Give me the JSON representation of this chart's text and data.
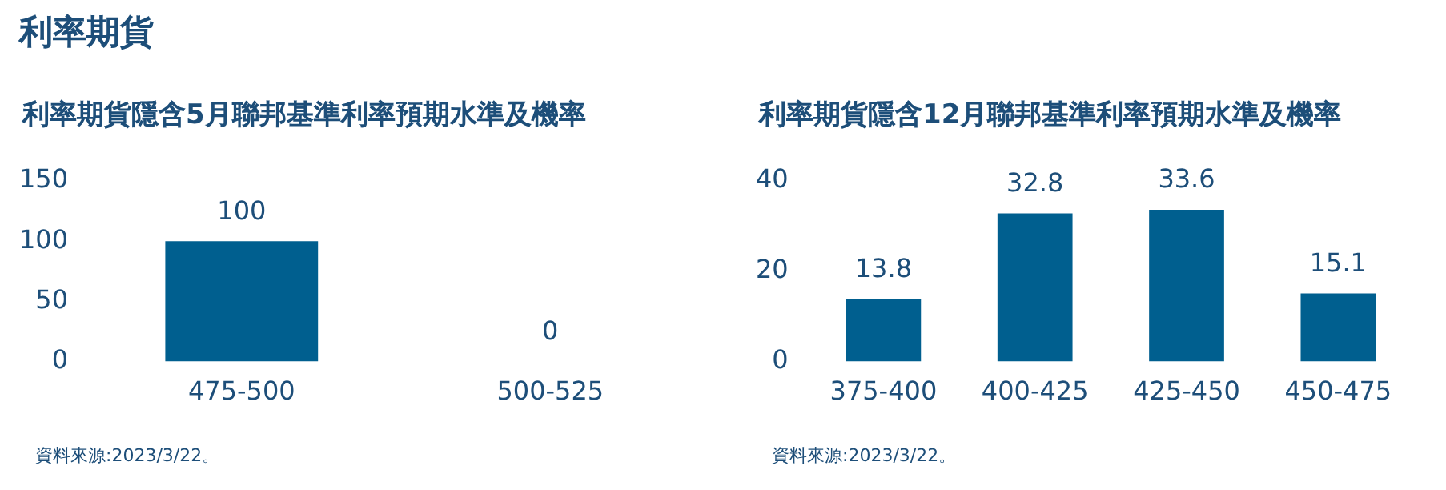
{
  "chart_data": [
    {
      "type": "bar",
      "title": "利率期貨",
      "subtitle": "利率期貨隱含5月聯邦基準利率預期水準及機率",
      "categories": [
        "475-500",
        "500-525"
      ],
      "values": [
        100,
        0
      ],
      "color": "#005f8f",
      "ylim": [
        0,
        150
      ],
      "yticks": [
        0,
        50,
        100,
        150
      ],
      "data_labels": true,
      "annotations": [
        "資料來源:2023/3/22。"
      ]
    },
    {
      "type": "bar",
      "subtitle": "利率期貨隱含12月聯邦基準利率預期水準及機率",
      "categories": [
        "375-400",
        "400-425",
        "425-450",
        "450-475"
      ],
      "values": [
        13.8,
        32.8,
        33.6,
        15.1
      ],
      "color": "#005f8f",
      "ylim": [
        0,
        40
      ],
      "yticks": [
        0,
        20,
        40
      ],
      "data_labels": true,
      "annotations": [
        "資料來源:2023/3/22。"
      ]
    }
  ]
}
